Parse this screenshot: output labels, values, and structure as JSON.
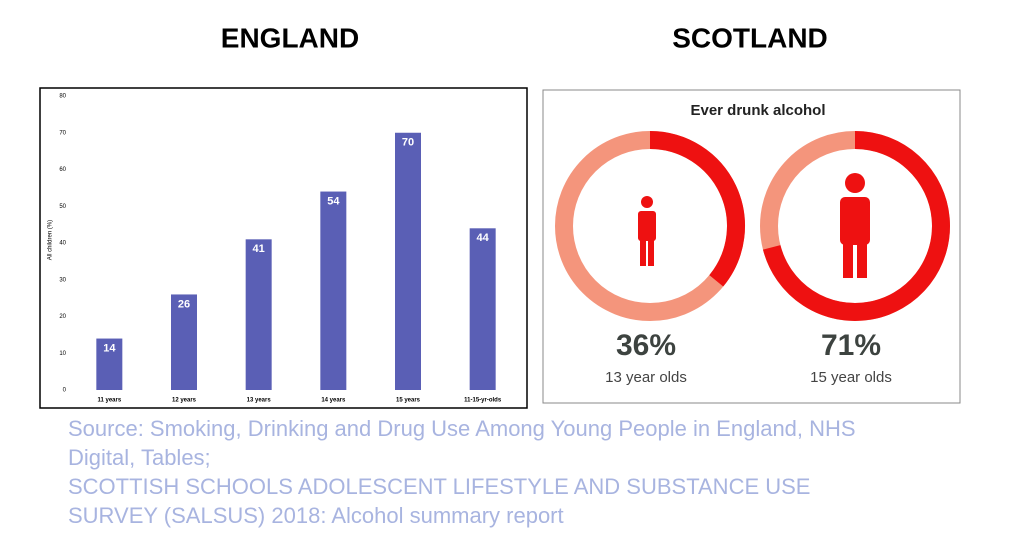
{
  "headings": [
    "ENGLAND",
    "SCOTLAND"
  ],
  "chart_data": [
    {
      "type": "bar",
      "y_label": "All children (%)",
      "categories": [
        "11 years",
        "12 years",
        "13 years",
        "14 years",
        "15 years",
        "11-15-yr-olds"
      ],
      "values": [
        14,
        26,
        41,
        54,
        70,
        44
      ],
      "color": "#5a5fb5",
      "ylim": [
        0,
        80
      ],
      "yticks": [
        0,
        10,
        20,
        30,
        40,
        50,
        60,
        70,
        80
      ],
      "grid": false
    },
    {
      "type": "donut",
      "title": "Ever drunk alcohol",
      "categories": [
        "13 year olds",
        "15 year olds"
      ],
      "values": [
        36,
        71
      ],
      "value_labels": [
        "36%",
        "71%"
      ],
      "color": "#ee1111",
      "track_color": "#f4957c"
    }
  ],
  "source": [
    "Source: Smoking, Drinking and Drug Use Among Young People in England, NHS",
    "Digital, Tables;",
    "SCOTTISH SCHOOLS ADOLESCENT LIFESTYLE AND SUBSTANCE USE",
    "SURVEY (SALSUS) 2018: Alcohol summary report"
  ]
}
